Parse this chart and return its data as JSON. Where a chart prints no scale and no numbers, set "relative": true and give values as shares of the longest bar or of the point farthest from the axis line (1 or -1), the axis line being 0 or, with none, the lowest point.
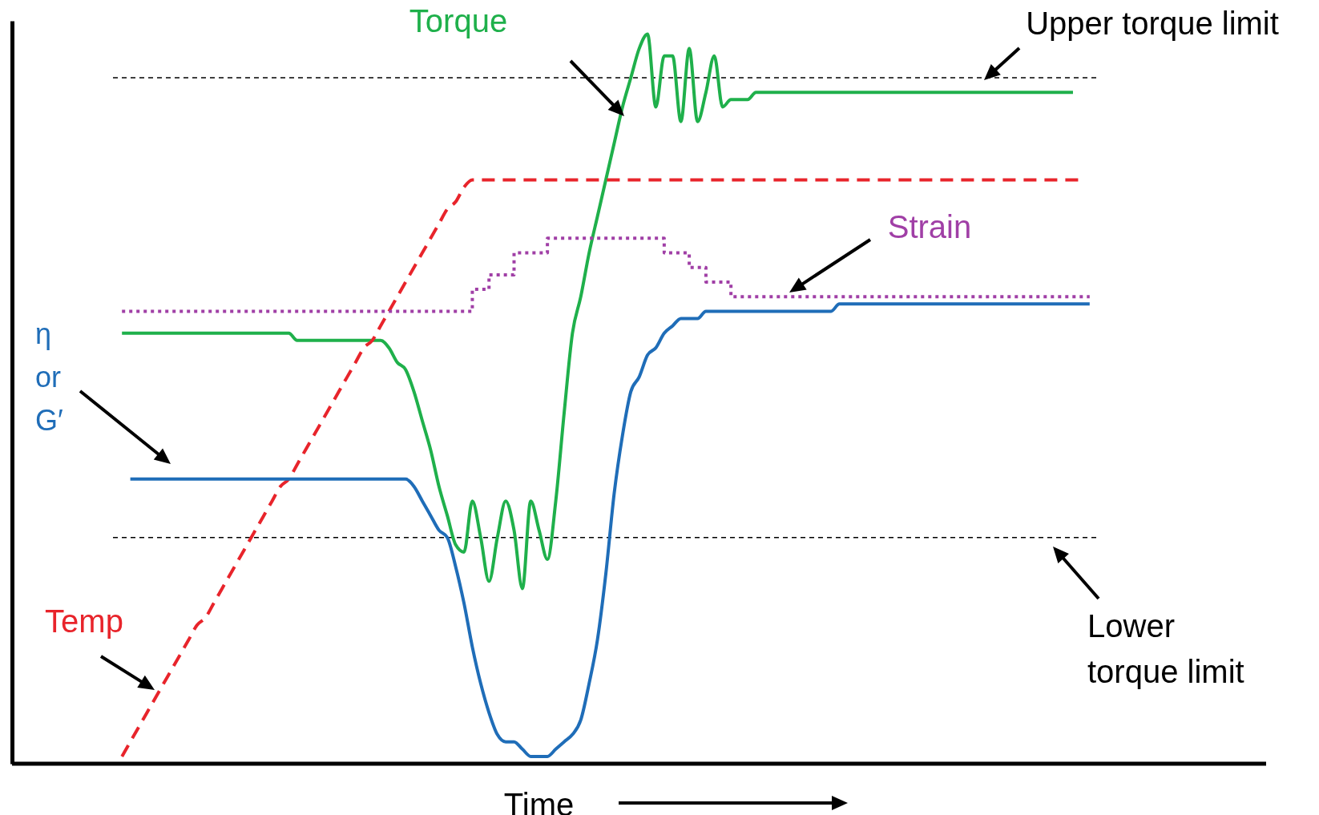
{
  "chart_data": {
    "type": "line",
    "relative": true,
    "xlabel": "Time",
    "categories": [
      null,
      null,
      null,
      null,
      null,
      null,
      null,
      null,
      null,
      null,
      null,
      null,
      null,
      null,
      null,
      null,
      null,
      null,
      null,
      null,
      null,
      null,
      null,
      null,
      null,
      null,
      null,
      null,
      null,
      null,
      null,
      null,
      null,
      null,
      null,
      null,
      null,
      null,
      null,
      null,
      null,
      null,
      null,
      null,
      null,
      null,
      null,
      null,
      null,
      null,
      null,
      null,
      null,
      null,
      null,
      null,
      null,
      null,
      null,
      null,
      null,
      null,
      null,
      null,
      null,
      null,
      null,
      null,
      null,
      null,
      null,
      null,
      null,
      null,
      null,
      null,
      null,
      null,
      null,
      null,
      null,
      null,
      null,
      null,
      null,
      null,
      null,
      null,
      null,
      null,
      null,
      null,
      null,
      null,
      null,
      null,
      null,
      null,
      null,
      null,
      null,
      null,
      null,
      null,
      null,
      null,
      null,
      null,
      null,
      null,
      null,
      null,
      null,
      null,
      null,
      null,
      null
    ],
    "series": [
      {
        "name": "Torque",
        "color": "#1fb04b",
        "line_style": "solid",
        "values": [
          0.59,
          0.59,
          0.59,
          0.59,
          0.59,
          0.59,
          0.59,
          0.59,
          0.59,
          0.59,
          0.59,
          0.59,
          0.59,
          0.59,
          0.59,
          0.59,
          0.59,
          0.59,
          0.59,
          0.59,
          0.59,
          0.58,
          0.58,
          0.58,
          0.58,
          0.58,
          0.58,
          0.58,
          0.58,
          0.58,
          0.58,
          0.58,
          0.57,
          0.55,
          0.54,
          0.51,
          0.47,
          0.43,
          0.38,
          0.34,
          0.3,
          0.29,
          0.36,
          0.31,
          0.25,
          0.31,
          0.36,
          0.32,
          0.24,
          0.36,
          0.32,
          0.28,
          0.36,
          0.48,
          0.59,
          0.64,
          0.7,
          0.75,
          0.8,
          0.85,
          0.9,
          0.94,
          0.98,
          1.0,
          0.9,
          0.97,
          0.97,
          0.88,
          0.98,
          0.88,
          0.92,
          0.97,
          0.9,
          0.91,
          0.91,
          0.91,
          0.92,
          0.92,
          0.92,
          0.92,
          0.92,
          0.92,
          0.92,
          0.92,
          0.92,
          0.92,
          0.92,
          0.92,
          0.92,
          0.92,
          0.92,
          0.92,
          0.92,
          0.92,
          0.92,
          0.92,
          0.92,
          0.92,
          0.92,
          0.92,
          0.92,
          0.92,
          0.92,
          0.92,
          0.92,
          0.92,
          0.92,
          0.92,
          0.92,
          0.92,
          0.92,
          0.92,
          0.92,
          0.92,
          0.92,
          null,
          null
        ]
      },
      {
        "name": "Temp",
        "color": "#e8242b",
        "line_style": "dashed",
        "values": [
          0.01,
          0.03,
          0.05,
          0.07,
          0.09,
          0.11,
          0.13,
          0.15,
          0.17,
          0.19,
          0.2,
          0.22,
          0.24,
          0.26,
          0.28,
          0.3,
          0.32,
          0.34,
          0.36,
          0.38,
          0.39,
          0.41,
          0.43,
          0.45,
          0.47,
          0.49,
          0.51,
          0.53,
          0.55,
          0.57,
          0.58,
          0.6,
          0.62,
          0.64,
          0.66,
          0.68,
          0.7,
          0.72,
          0.74,
          0.76,
          0.77,
          0.79,
          0.8,
          0.8,
          0.8,
          0.8,
          0.8,
          0.8,
          0.8,
          0.8,
          0.8,
          0.8,
          0.8,
          0.8,
          0.8,
          0.8,
          0.8,
          0.8,
          0.8,
          0.8,
          0.8,
          0.8,
          0.8,
          0.8,
          0.8,
          0.8,
          0.8,
          0.8,
          0.8,
          0.8,
          0.8,
          0.8,
          0.8,
          0.8,
          0.8,
          0.8,
          0.8,
          0.8,
          0.8,
          0.8,
          0.8,
          0.8,
          0.8,
          0.8,
          0.8,
          0.8,
          0.8,
          0.8,
          0.8,
          0.8,
          0.8,
          0.8,
          0.8,
          0.8,
          0.8,
          0.8,
          0.8,
          0.8,
          0.8,
          0.8,
          0.8,
          0.8,
          0.8,
          0.8,
          0.8,
          0.8,
          0.8,
          0.8,
          0.8,
          0.8,
          0.8,
          0.8,
          0.8,
          0.8,
          0.8,
          0.8,
          null
        ]
      },
      {
        "name": "Strain",
        "type": "step",
        "color": "#a03fa6",
        "line_style": "dotted",
        "values": [
          0.62,
          0.62,
          0.62,
          0.62,
          0.62,
          0.62,
          0.62,
          0.62,
          0.62,
          0.62,
          0.62,
          0.62,
          0.62,
          0.62,
          0.62,
          0.62,
          0.62,
          0.62,
          0.62,
          0.62,
          0.62,
          0.62,
          0.62,
          0.62,
          0.62,
          0.62,
          0.62,
          0.62,
          0.62,
          0.62,
          0.62,
          0.62,
          0.62,
          0.62,
          0.62,
          0.62,
          0.62,
          0.62,
          0.62,
          0.62,
          0.62,
          0.62,
          0.65,
          0.65,
          0.67,
          0.67,
          0.67,
          0.7,
          0.7,
          0.7,
          0.7,
          0.72,
          0.72,
          0.72,
          0.72,
          0.72,
          0.72,
          0.72,
          0.72,
          0.72,
          0.72,
          0.72,
          0.72,
          0.72,
          0.72,
          0.7,
          0.7,
          0.7,
          0.68,
          0.68,
          0.66,
          0.66,
          0.66,
          0.64,
          0.64,
          0.64,
          0.64,
          0.64,
          0.64,
          0.64,
          0.64,
          0.64,
          0.64,
          0.64,
          0.64,
          0.64,
          0.64,
          0.64,
          0.64,
          0.64,
          0.64,
          0.64,
          0.64,
          0.64,
          0.64,
          0.64,
          0.64,
          0.64,
          0.64,
          0.64,
          0.64,
          0.64,
          0.64,
          0.64,
          0.64,
          0.64,
          0.64,
          0.64,
          0.64,
          0.64,
          0.64,
          0.64,
          0.64,
          0.64,
          0.64,
          0.64,
          0.64
        ]
      },
      {
        "name": "η or G′",
        "color": "#1f6db8",
        "line_style": "solid",
        "values": [
          null,
          0.39,
          0.39,
          0.39,
          0.39,
          0.39,
          0.39,
          0.39,
          0.39,
          0.39,
          0.39,
          0.39,
          0.39,
          0.39,
          0.39,
          0.39,
          0.39,
          0.39,
          0.39,
          0.39,
          0.39,
          0.39,
          0.39,
          0.39,
          0.39,
          0.39,
          0.39,
          0.39,
          0.39,
          0.39,
          0.39,
          0.39,
          0.39,
          0.39,
          0.39,
          0.38,
          0.36,
          0.34,
          0.32,
          0.31,
          0.27,
          0.22,
          0.16,
          0.11,
          0.07,
          0.04,
          0.03,
          0.03,
          0.02,
          0.01,
          0.01,
          0.01,
          0.02,
          0.03,
          0.04,
          0.06,
          0.11,
          0.17,
          0.26,
          0.37,
          0.45,
          0.51,
          0.53,
          0.56,
          0.57,
          0.59,
          0.6,
          0.61,
          0.61,
          0.61,
          0.62,
          0.62,
          0.62,
          0.62,
          0.62,
          0.62,
          0.62,
          0.62,
          0.62,
          0.62,
          0.62,
          0.62,
          0.62,
          0.62,
          0.62,
          0.62,
          0.63,
          0.63,
          0.63,
          0.63,
          0.63,
          0.63,
          0.63,
          0.63,
          0.63,
          0.63,
          0.63,
          0.63,
          0.63,
          0.63,
          0.63,
          0.63,
          0.63,
          0.63,
          0.63,
          0.63,
          0.63,
          0.63,
          0.63,
          0.63,
          0.63,
          0.63,
          0.63,
          0.63,
          0.63,
          0.63,
          0.63
        ]
      }
    ],
    "ref_lines": [
      {
        "axis": "y",
        "value": 0.94,
        "label": "Upper torque limit",
        "color": "#000000",
        "line_style": "dashed"
      },
      {
        "axis": "y",
        "value": 0.31,
        "label": "Lower torque limit",
        "color": "#000000",
        "line_style": "dashed"
      }
    ]
  }
}
